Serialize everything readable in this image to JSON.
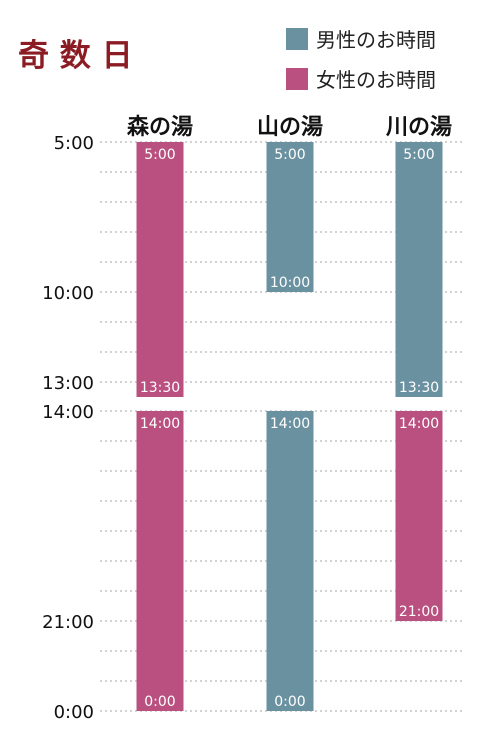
{
  "title": "奇 数 日",
  "legend": [
    {
      "label": "男性のお時間",
      "color": "#6a919f"
    },
    {
      "label": "女性のお時間",
      "color": "#b9507f"
    }
  ],
  "chart_data": {
    "type": "bar",
    "orientation": "vertical-timeline",
    "categories": [
      "森の湯",
      "山の湯",
      "川の湯"
    ],
    "yticks": [
      "5:00",
      "10:00",
      "13:00",
      "14:00",
      "21:00",
      "0:00"
    ],
    "segments": [
      {
        "category": "森の湯",
        "series": "女性のお時間",
        "start": "5:00",
        "end": "13:30",
        "start_label": "5:00",
        "end_label": "13:30"
      },
      {
        "category": "森の湯",
        "series": "女性のお時間",
        "start": "14:00",
        "end": "0:00",
        "start_label": "14:00",
        "end_label": "0:00"
      },
      {
        "category": "山の湯",
        "series": "男性のお時間",
        "start": "5:00",
        "end": "10:00",
        "start_label": "5:00",
        "end_label": "10:00"
      },
      {
        "category": "山の湯",
        "series": "男性のお時間",
        "start": "14:00",
        "end": "0:00",
        "start_label": "14:00",
        "end_label": "0:00"
      },
      {
        "category": "川の湯",
        "series": "男性のお時間",
        "start": "5:00",
        "end": "13:30",
        "start_label": "5:00",
        "end_label": "13:30"
      },
      {
        "category": "川の湯",
        "series": "女性のお時間",
        "start": "14:00",
        "end": "21:00",
        "start_label": "14:00",
        "end_label": "21:00"
      }
    ],
    "grid": true,
    "legend_position": "top-right"
  }
}
